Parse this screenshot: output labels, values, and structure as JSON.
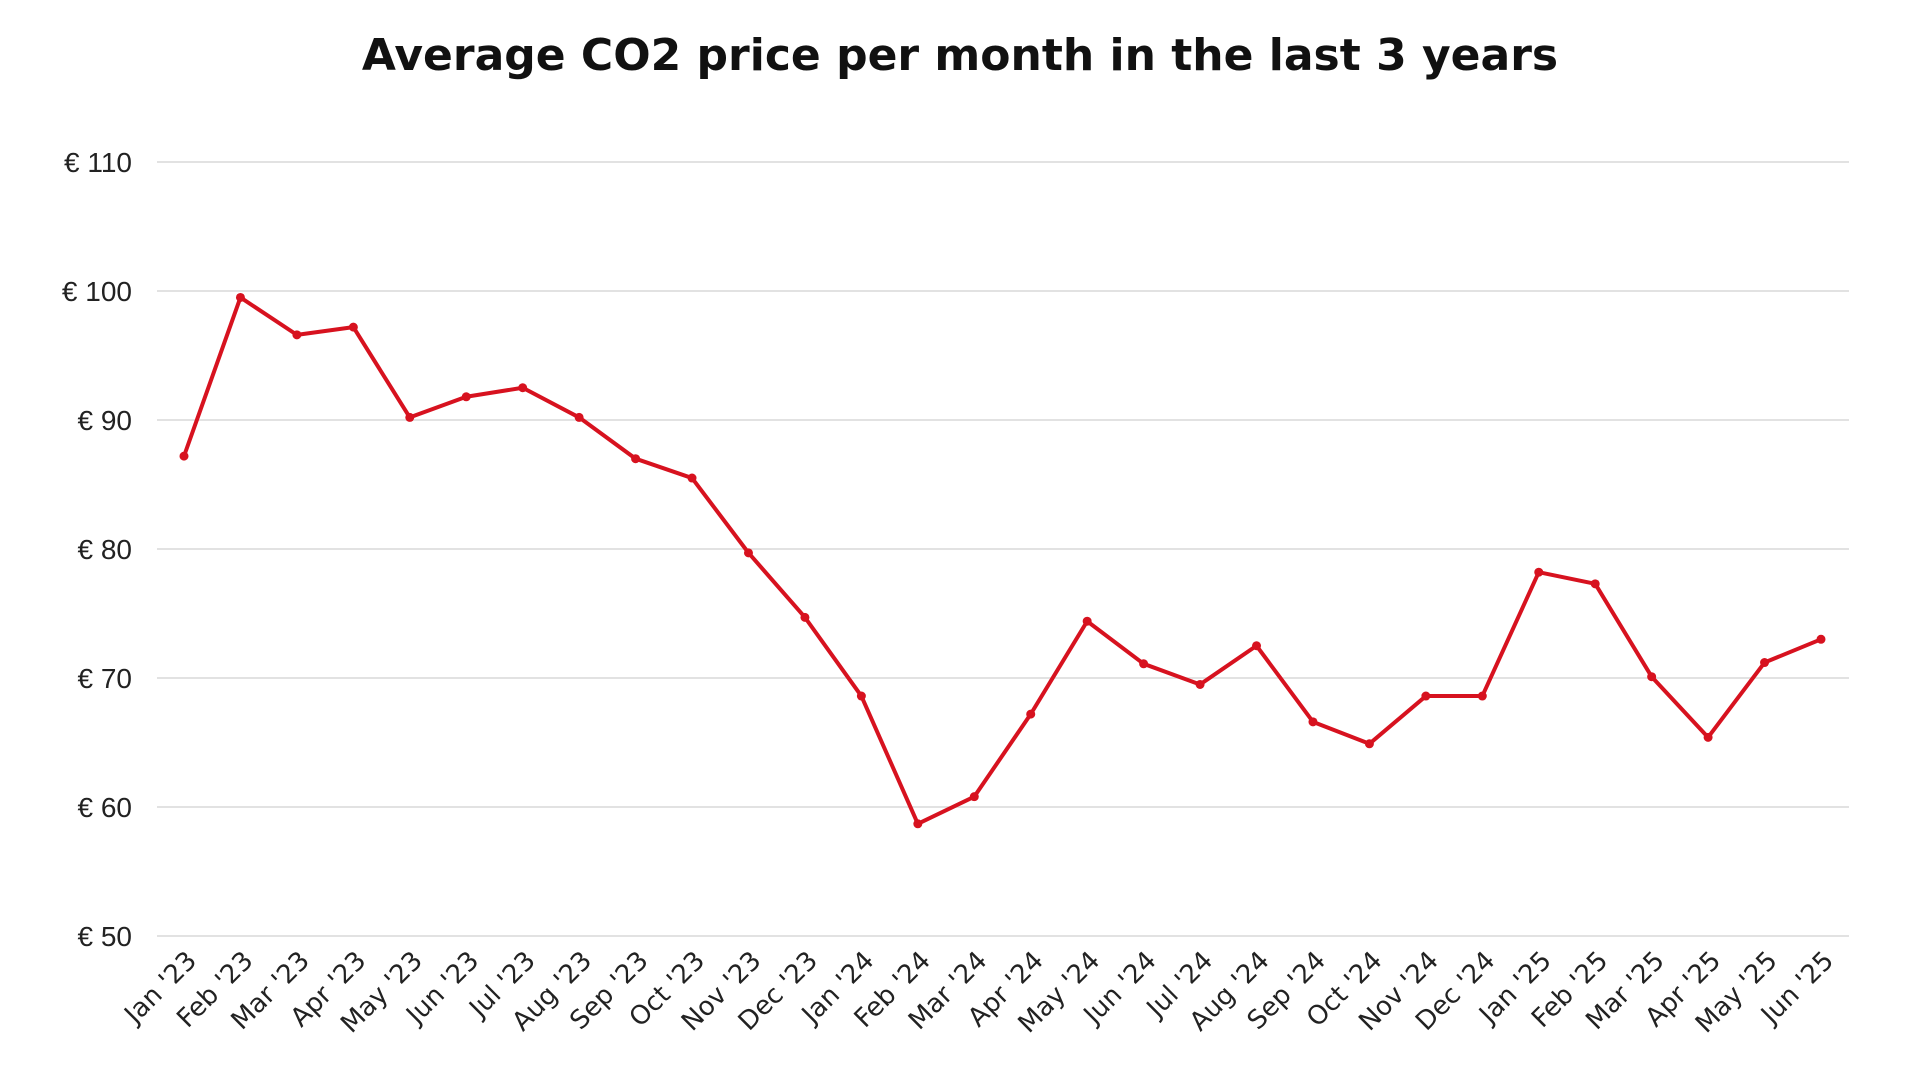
{
  "chart_data": {
    "type": "line",
    "title": "Average CO2 price per month in the last 3 years",
    "xlabel": "",
    "ylabel": "",
    "ylim": [
      50,
      110
    ],
    "y_ticks": [
      50,
      60,
      70,
      80,
      90,
      100,
      110
    ],
    "y_tick_labels": [
      "€ 50",
      "€ 60",
      "€ 70",
      "€ 80",
      "€ 90",
      "€ 100",
      "€ 110"
    ],
    "grid": true,
    "legend": "none",
    "categories": [
      "Jan '23",
      "Feb '23",
      "Mar '23",
      "Apr '23",
      "May '23",
      "Jun '23",
      "Jul '23",
      "Aug '23",
      "Sep '23",
      "Oct '23",
      "Nov '23",
      "Dec '23",
      "Jan '24",
      "Feb '24",
      "Mar '24",
      "Apr '24",
      "May '24",
      "Jun '24",
      "Jul '24",
      "Aug '24",
      "Sep '24",
      "Oct '24",
      "Nov '24",
      "Dec '24",
      "Jan '25",
      "Feb '25",
      "Mar '25",
      "Apr '25",
      "May '25",
      "Jun '25"
    ],
    "series": [
      {
        "name": "Average CO2 price",
        "color": "#d7121f",
        "values": [
          87.2,
          99.5,
          96.6,
          97.2,
          90.2,
          91.8,
          92.5,
          90.2,
          87.0,
          85.5,
          79.7,
          74.7,
          68.6,
          58.7,
          60.8,
          67.2,
          74.4,
          71.1,
          69.5,
          72.5,
          66.6,
          64.9,
          68.6,
          68.6,
          78.2,
          77.3,
          70.1,
          65.4,
          71.2,
          73.0
        ]
      }
    ]
  }
}
